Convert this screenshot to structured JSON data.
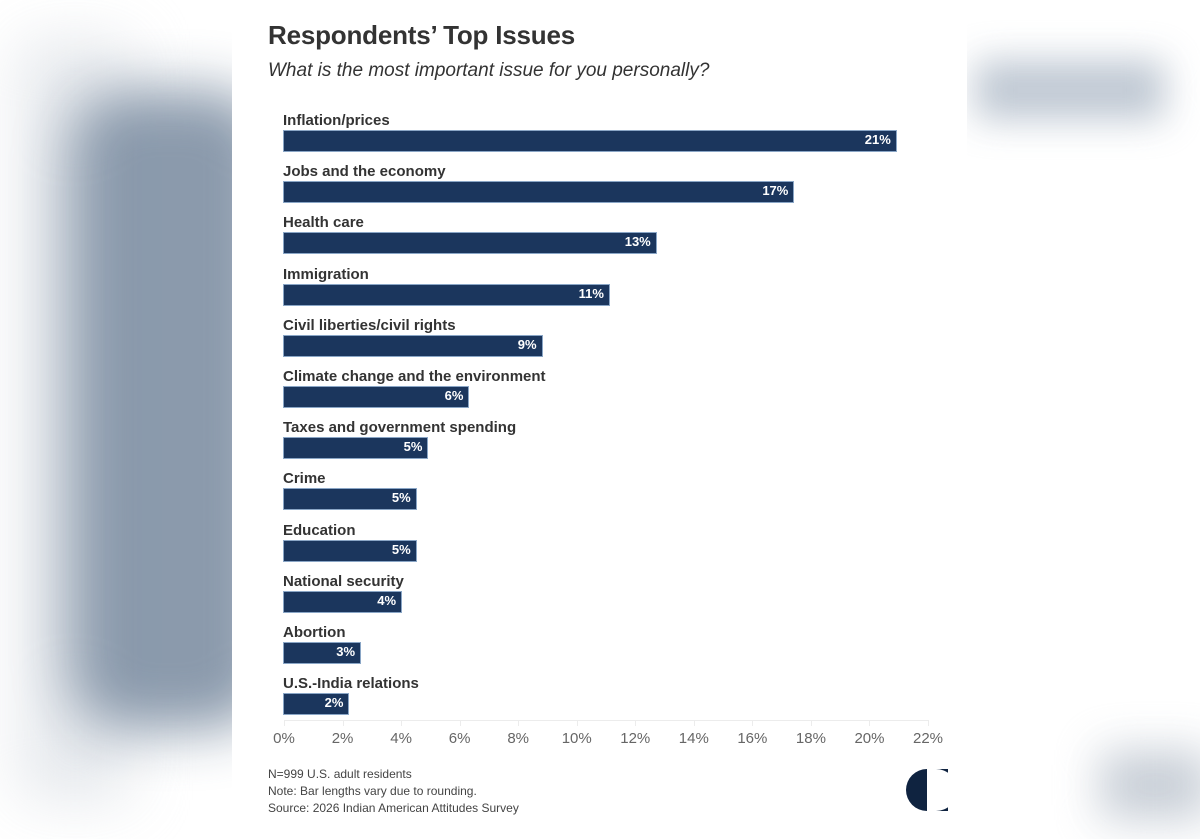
{
  "header": {
    "title": "Respondents’ Top Issues",
    "subtitle": "What is the most important issue for you personally?"
  },
  "colors": {
    "bar": "#1b365d",
    "text": "#333333",
    "axis_text": "#666666"
  },
  "chart_data": {
    "type": "bar",
    "orientation": "horizontal",
    "title": "Respondents’ Top Issues",
    "subtitle": "What is the most important issue for you personally?",
    "xlabel": "",
    "ylabel": "",
    "xlim": [
      0,
      22
    ],
    "x_ticks": [
      "0%",
      "2%",
      "4%",
      "6%",
      "8%",
      "10%",
      "12%",
      "14%",
      "16%",
      "18%",
      "20%",
      "22%"
    ],
    "grid": false,
    "legend": "none",
    "categories": [
      "Inflation/prices",
      "Jobs and the economy",
      "Health care",
      "Immigration",
      "Civil liberties/civil rights",
      "Climate change and the environment",
      "Taxes and government spending",
      "Crime",
      "Education",
      "National security",
      "Abortion",
      "U.S.-India relations"
    ],
    "values": [
      20.9,
      17.4,
      12.7,
      11.1,
      8.8,
      6.3,
      4.9,
      4.5,
      4.5,
      4.0,
      2.6,
      2.2
    ],
    "value_labels": [
      "21%",
      "17%",
      "13%",
      "11%",
      "9%",
      "6%",
      "5%",
      "5%",
      "5%",
      "4%",
      "3%",
      "2%"
    ]
  },
  "footer": {
    "sample": "N=999 U.S. adult residents",
    "note": "Note: Bar lengths vary due to rounding.",
    "source": "Source: 2026 Indian American Attitudes Survey",
    "logo_icon": "half-circle-logo-icon"
  }
}
